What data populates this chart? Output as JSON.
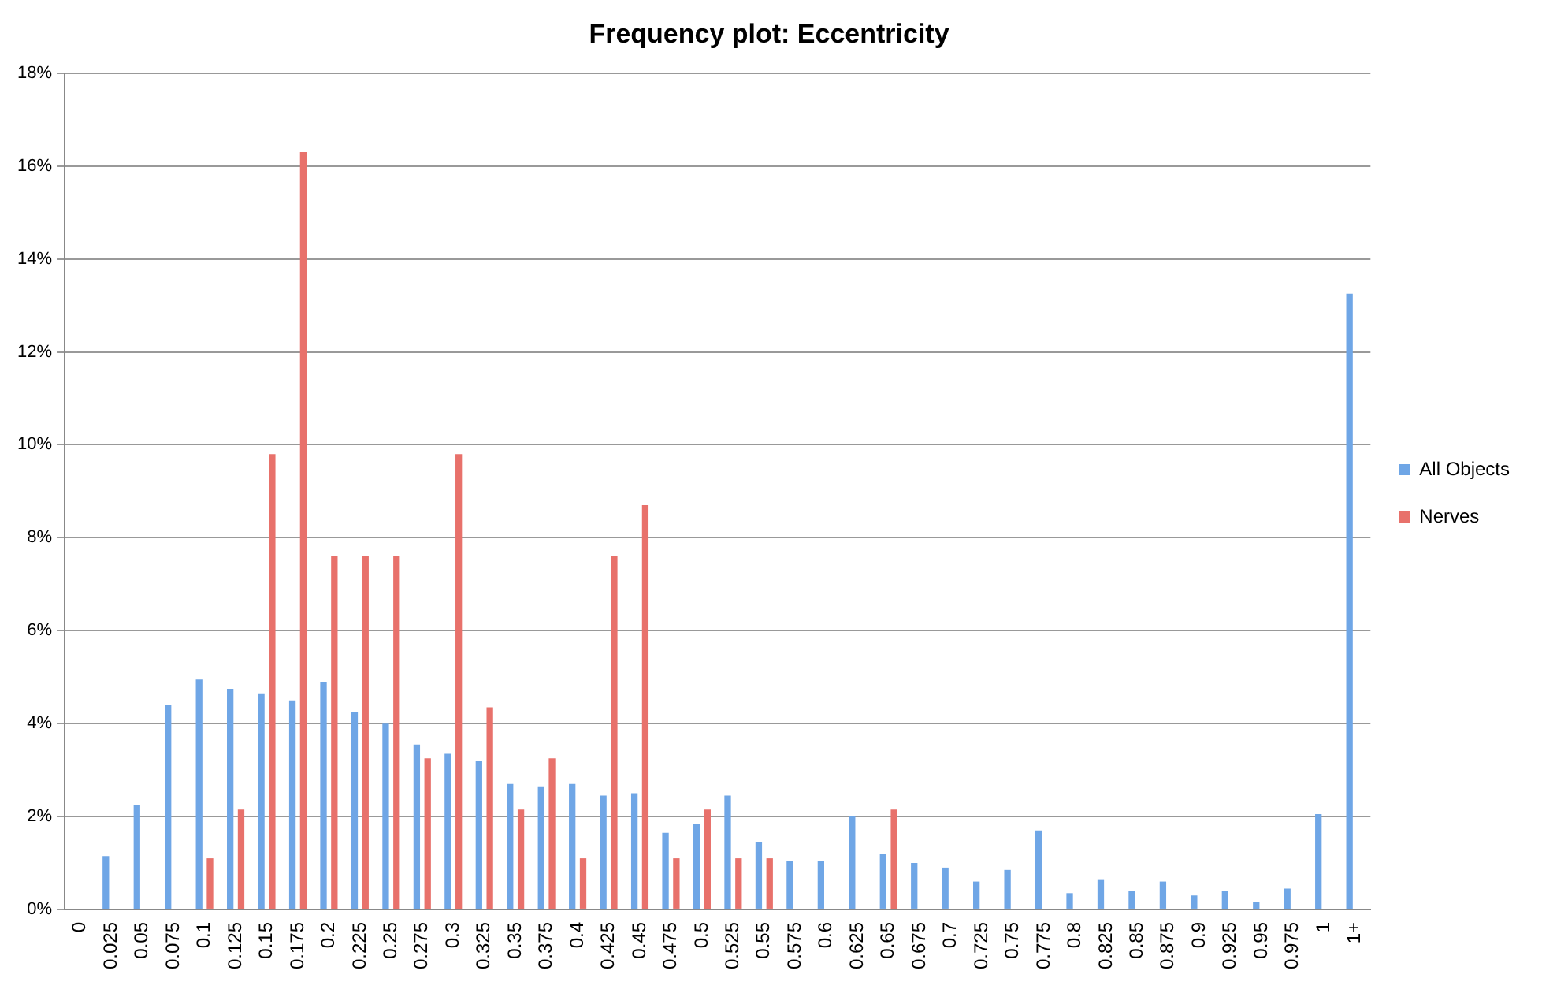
{
  "chart_data": {
    "type": "bar",
    "title": "Frequency plot: Eccentricity",
    "categories": [
      "0",
      "0.025",
      "0.05",
      "0.075",
      "0.1",
      "0.125",
      "0.15",
      "0.175",
      "0.2",
      "0.225",
      "0.25",
      "0.275",
      "0.3",
      "0.325",
      "0.35",
      "0.375",
      "0.4",
      "0.425",
      "0.45",
      "0.475",
      "0.5",
      "0.525",
      "0.55",
      "0.575",
      "0.6",
      "0.625",
      "0.65",
      "0.675",
      "0.7",
      "0.725",
      "0.75",
      "0.775",
      "0.8",
      "0.825",
      "0.85",
      "0.875",
      "0.9",
      "0.925",
      "0.95",
      "0.975",
      "1",
      "1+"
    ],
    "series": [
      {
        "name": "All Objects",
        "color": "#6fa6e6",
        "values": [
          0,
          1.15,
          2.25,
          4.4,
          4.95,
          4.75,
          4.65,
          4.5,
          4.9,
          4.25,
          4.0,
          3.55,
          3.35,
          3.2,
          2.7,
          2.65,
          2.7,
          2.45,
          2.5,
          1.65,
          1.85,
          2.45,
          1.45,
          1.05,
          1.05,
          2.0,
          1.2,
          1.0,
          0.9,
          0.6,
          0.85,
          1.7,
          0.35,
          0.65,
          0.4,
          0.6,
          0.3,
          0.4,
          0.15,
          0.45,
          2.05,
          13.25
        ]
      },
      {
        "name": "Nerves",
        "color": "#e8716b",
        "values": [
          0,
          0,
          0,
          0,
          1.1,
          2.15,
          9.8,
          16.3,
          7.6,
          7.6,
          7.6,
          3.25,
          9.8,
          4.35,
          2.15,
          3.25,
          1.1,
          7.6,
          8.7,
          1.1,
          2.15,
          1.1,
          1.1,
          0,
          0,
          0,
          2.15,
          0,
          0,
          0,
          0,
          0,
          0,
          0,
          0,
          0,
          0,
          0,
          0,
          0,
          0,
          0
        ]
      }
    ],
    "ylim": [
      0,
      18
    ],
    "yticks": [
      {
        "value": 0,
        "label": "0%"
      },
      {
        "value": 2,
        "label": "2%"
      },
      {
        "value": 4,
        "label": "4%"
      },
      {
        "value": 6,
        "label": "6%"
      },
      {
        "value": 8,
        "label": "8%"
      },
      {
        "value": 10,
        "label": "10%"
      },
      {
        "value": 12,
        "label": "12%"
      },
      {
        "value": 14,
        "label": "14%"
      },
      {
        "value": 16,
        "label": "16%"
      },
      {
        "value": 18,
        "label": "18%"
      }
    ],
    "grid": "y",
    "legend": "right"
  }
}
